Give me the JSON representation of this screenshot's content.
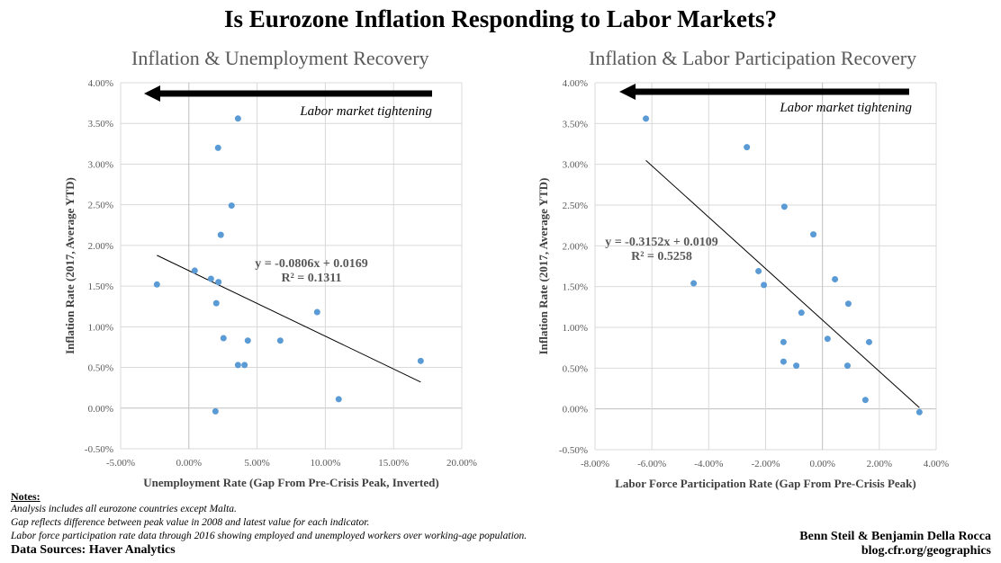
{
  "title": "Is Eurozone Inflation Responding to Labor Markets?",
  "colors": {
    "points": "#5B9BD5",
    "grid": "#d9d9d9",
    "zero_axis": "#bfbfbf",
    "trendline": "#000000",
    "arrow": "#000000"
  },
  "chart_data": [
    {
      "type": "scatter",
      "title": "Inflation & Unemployment Recovery",
      "xlabel": "Unemployment Rate (Gap From Pre-Crisis Peak, Inverted)",
      "ylabel": "Inflation Rate (2017, Average YTD)",
      "xlim": [
        -5,
        20
      ],
      "ylim": [
        -0.5,
        4
      ],
      "x_ticks": [
        -5,
        0,
        5,
        10,
        15,
        20
      ],
      "x_tick_labels": [
        "-5.00%",
        "0.00%",
        "5.00%",
        "10.00%",
        "15.00%",
        "20.00%"
      ],
      "y_ticks": [
        -0.5,
        0,
        0.5,
        1,
        1.5,
        2,
        2.5,
        3,
        3.5,
        4
      ],
      "y_tick_labels": [
        "-0.50%",
        "0.00%",
        "0.50%",
        "1.00%",
        "1.50%",
        "2.00%",
        "2.50%",
        "3.00%",
        "3.50%",
        "4.00%"
      ],
      "grid": true,
      "points": [
        [
          3.6,
          3.56
        ],
        [
          2.14,
          3.2
        ],
        [
          3.13,
          2.49
        ],
        [
          2.34,
          2.13
        ],
        [
          0.43,
          1.69
        ],
        [
          1.62,
          1.59
        ],
        [
          2.17,
          1.55
        ],
        [
          -2.34,
          1.52
        ],
        [
          2.01,
          1.29
        ],
        [
          9.4,
          1.18
        ],
        [
          2.54,
          0.86
        ],
        [
          4.32,
          0.83
        ],
        [
          6.7,
          0.83
        ],
        [
          3.6,
          0.53
        ],
        [
          4.08,
          0.53
        ],
        [
          16.99,
          0.58
        ],
        [
          10.98,
          0.11
        ],
        [
          1.95,
          -0.04
        ]
      ],
      "trendline": {
        "slope": -0.0806,
        "intercept": 0.0169,
        "x_range": [
          -2.34,
          16.99
        ],
        "equation": "y = -0.0806x + 0.0169",
        "r2": "R² = 0.1311"
      },
      "annotation": "Labor market tightening",
      "arrow_direction": "left"
    },
    {
      "type": "scatter",
      "title": "Inflation & Labor Participation Recovery",
      "xlabel": "Labor Force Participation Rate (Gap From Pre-Crisis Peak)",
      "ylabel": "Inflation Rate (2017, Average YTD)",
      "xlim": [
        -8,
        4
      ],
      "ylim": [
        -0.5,
        4
      ],
      "x_ticks": [
        -8,
        -6,
        -4,
        -2,
        0,
        2,
        4
      ],
      "x_tick_labels": [
        "-8.00%",
        "-6.00%",
        "-4.00%",
        "-2.00%",
        "0.00%",
        "2.00%",
        "4.00%"
      ],
      "y_ticks": [
        -0.5,
        0,
        0.5,
        1,
        1.5,
        2,
        2.5,
        3,
        3.5,
        4
      ],
      "y_tick_labels": [
        "-0.50%",
        "0.00%",
        "0.50%",
        "1.00%",
        "1.50%",
        "2.00%",
        "2.50%",
        "3.00%",
        "3.50%",
        "4.00%"
      ],
      "grid": true,
      "points": [
        [
          -6.21,
          3.56
        ],
        [
          -2.66,
          3.21
        ],
        [
          -1.34,
          2.48
        ],
        [
          -0.32,
          2.14
        ],
        [
          -2.25,
          1.69
        ],
        [
          -4.53,
          1.54
        ],
        [
          -2.06,
          1.52
        ],
        [
          0.44,
          1.59
        ],
        [
          0.91,
          1.29
        ],
        [
          -0.74,
          1.18
        ],
        [
          -1.37,
          0.82
        ],
        [
          0.18,
          0.86
        ],
        [
          1.64,
          0.82
        ],
        [
          -1.37,
          0.58
        ],
        [
          -0.92,
          0.53
        ],
        [
          0.88,
          0.53
        ],
        [
          1.51,
          0.11
        ],
        [
          3.41,
          -0.04
        ]
      ],
      "trendline": {
        "slope": -0.3152,
        "intercept": 0.0109,
        "x_range": [
          -6.21,
          3.41
        ],
        "equation": "y = -0.3152x + 0.0109",
        "r2": "R² = 0.5258"
      },
      "annotation": "Labor market tightening",
      "arrow_direction": "left"
    }
  ],
  "notes": {
    "heading": "Notes:",
    "lines": [
      "Analysis includes all eurozone countries except Malta.",
      "Gap reflects difference between peak value in 2008 and latest value for each indicator.",
      "Labor force participation rate data through 2016 showing employed and unemployed workers over working-age population."
    ],
    "sources": "Data Sources: Haver Analytics"
  },
  "credits": {
    "authors": "Benn Steil & Benjamin Della Rocca",
    "url": "blog.cfr.org/geographics"
  }
}
